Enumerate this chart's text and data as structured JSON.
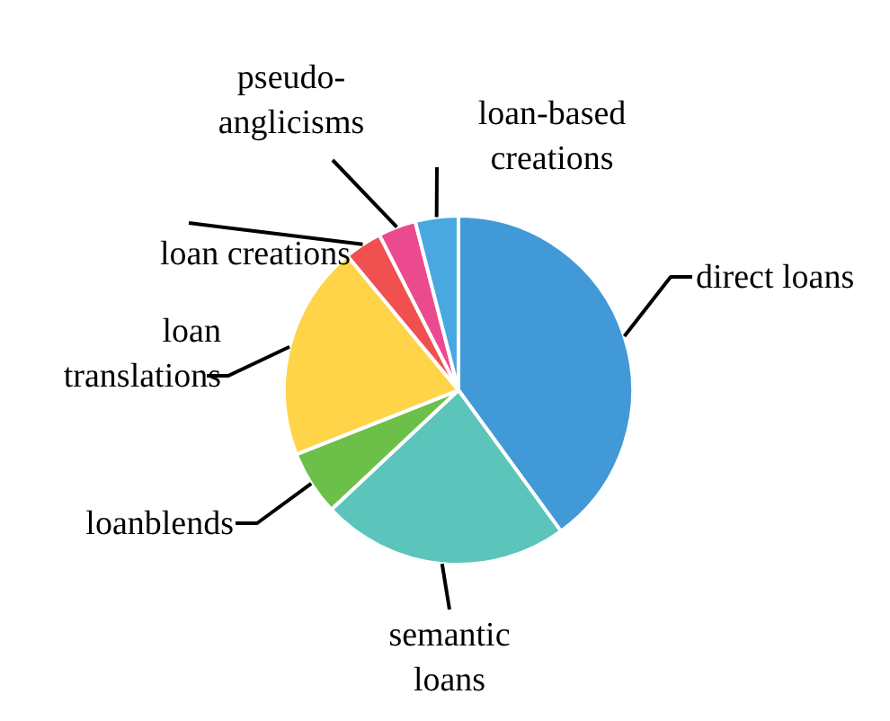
{
  "chart_data": {
    "type": "pie",
    "categories": [
      "direct loans",
      "semantic loans",
      "loanblends",
      "loan translations",
      "loan creations",
      "pseudo-anglicisms",
      "loan-based creations"
    ],
    "values": [
      40,
      23,
      6,
      20,
      3.5,
      3.5,
      4
    ],
    "colors": [
      "#4299d7",
      "#5bc4bb",
      "#6cc04a",
      "#ffd449",
      "#f0504f",
      "#ec4a8f",
      "#4aa8e0"
    ]
  }
}
